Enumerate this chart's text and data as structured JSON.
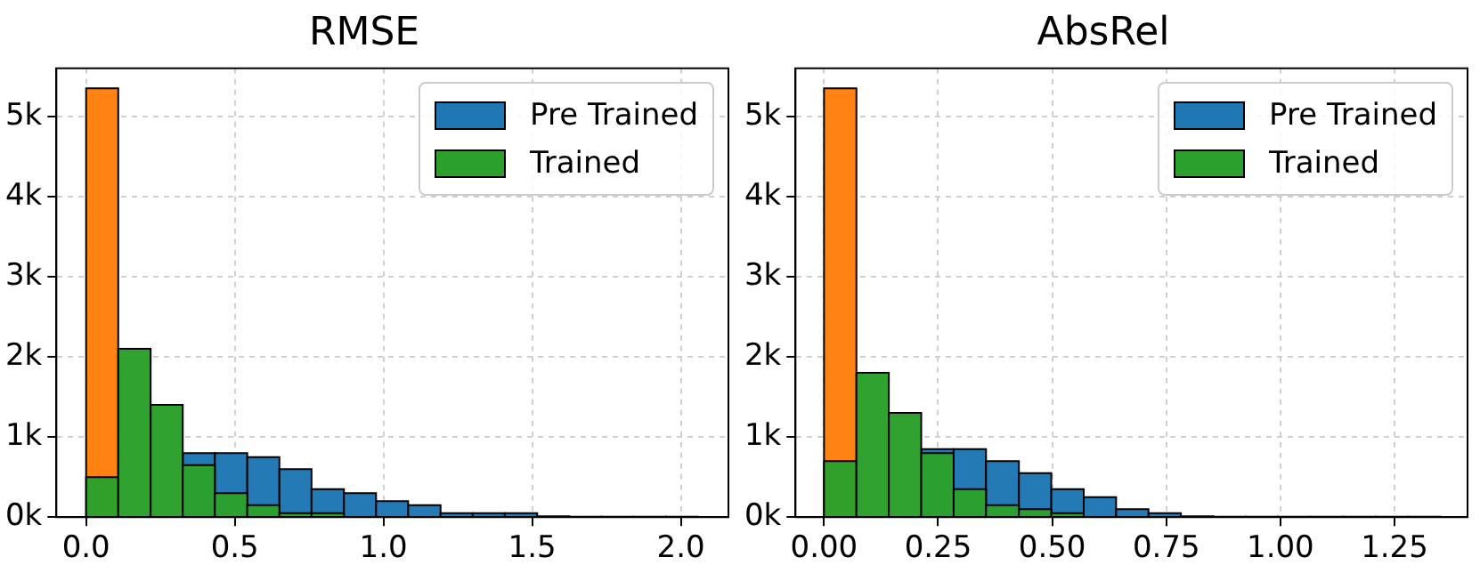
{
  "chart_data": [
    {
      "type": "histogram",
      "title": "RMSE",
      "bins": [
        0,
        0.108,
        0.217,
        0.325,
        0.433,
        0.542,
        0.65,
        0.758,
        0.867,
        0.975,
        1.083,
        1.192,
        1.3,
        1.408,
        1.517,
        1.625,
        1.733,
        1.842,
        1.95,
        2.058
      ],
      "series": [
        {
          "name": "Pre Trained",
          "color": "#1f77b4",
          "values": [
            null,
            null,
            null,
            800,
            800,
            750,
            600,
            350,
            300,
            200,
            150,
            50,
            50,
            50,
            10,
            5,
            5,
            5,
            5
          ]
        },
        {
          "color": "#ff7f0e",
          "values": [
            5350,
            null,
            null,
            null,
            null,
            null,
            null,
            null,
            null,
            null,
            null,
            null,
            null,
            null,
            null,
            null,
            null,
            null,
            null
          ]
        },
        {
          "name": "Trained",
          "color": "#2ca02c",
          "values": [
            500,
            2100,
            1400,
            650,
            300,
            150,
            50,
            50,
            0,
            0,
            0,
            0,
            0,
            0,
            0,
            0,
            0,
            0,
            0
          ]
        }
      ],
      "xlim": [
        -0.1,
        2.16
      ],
      "xticks": [
        {
          "value": 0,
          "label": "0.0"
        },
        0.5,
        {
          "value": 1,
          "label": "1.0"
        },
        1.5,
        {
          "value": 2,
          "label": "2.0"
        }
      ],
      "ylim": [
        0,
        5600
      ],
      "yticks": [
        {
          "value": 0,
          "label": "0k"
        },
        {
          "value": 1000,
          "label": "1k"
        },
        {
          "value": 2000,
          "label": "2k"
        },
        {
          "value": 3000,
          "label": "3k"
        },
        {
          "value": 4000,
          "label": "4k"
        },
        {
          "value": 5000,
          "label": "5k"
        }
      ],
      "grid": true,
      "legend": "top right"
    },
    {
      "type": "histogram",
      "title": "AbsRel",
      "bins": [
        0,
        0.071,
        0.142,
        0.213,
        0.284,
        0.355,
        0.427,
        0.498,
        0.569,
        0.64,
        0.711,
        0.782,
        0.853,
        0.924,
        0.995,
        1.066,
        1.138,
        1.209,
        1.28,
        1.351
      ],
      "series": [
        {
          "name": "Pre Trained",
          "color": "#1f77b4",
          "values": [
            null,
            null,
            null,
            850,
            850,
            700,
            550,
            350,
            250,
            100,
            50,
            10,
            5,
            5,
            5,
            5,
            5,
            5,
            5
          ]
        },
        {
          "color": "#ff7f0e",
          "values": [
            5350,
            null,
            null,
            null,
            null,
            null,
            null,
            null,
            null,
            null,
            null,
            null,
            null,
            null,
            null,
            null,
            null,
            null,
            null
          ]
        },
        {
          "name": "Trained",
          "color": "#2ca02c",
          "values": [
            700,
            1800,
            1300,
            800,
            350,
            150,
            100,
            50,
            0,
            0,
            0,
            0,
            0,
            0,
            0,
            0,
            0,
            0,
            0
          ]
        }
      ],
      "xlim": [
        -0.0625,
        1.41
      ],
      "xticks": [
        {
          "value": 0,
          "label": "0.00"
        },
        0.25,
        {
          "value": 0.5,
          "label": "0.50"
        },
        0.75,
        {
          "value": 1,
          "label": "1.00"
        },
        1.25
      ],
      "ylim": [
        0,
        5600
      ],
      "yticks": [
        {
          "value": 0,
          "label": "0k"
        },
        {
          "value": 1000,
          "label": "1k"
        },
        {
          "value": 2000,
          "label": "2k"
        },
        {
          "value": 3000,
          "label": "3k"
        },
        {
          "value": 4000,
          "label": "4k"
        },
        {
          "value": 5000,
          "label": "5k"
        }
      ],
      "grid": true,
      "legend": "top right"
    }
  ]
}
